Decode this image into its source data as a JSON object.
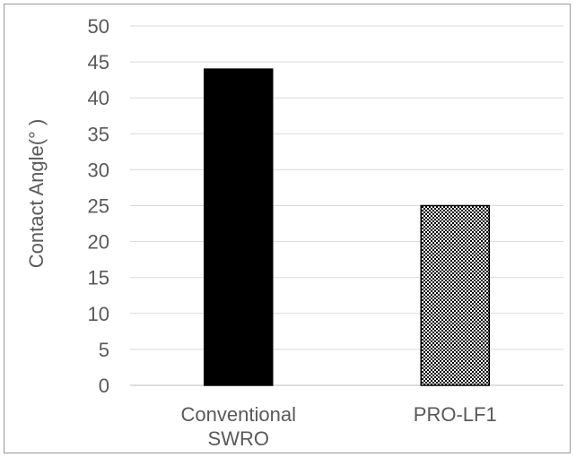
{
  "chart_data": {
    "type": "bar",
    "title": "",
    "xlabel": "",
    "ylabel": "Contact Angle(° )",
    "ylim": [
      0,
      50
    ],
    "yticks": [
      0,
      5,
      10,
      15,
      20,
      25,
      30,
      35,
      40,
      45,
      50
    ],
    "grid": true,
    "categories": [
      [
        "Conventional",
        "SWRO"
      ],
      [
        "PRO-LF1"
      ]
    ],
    "values": [
      44,
      25
    ],
    "bar_styles": [
      "solid",
      "checkered"
    ],
    "colors": {
      "bar_solid": "#000000",
      "grid": "#d9d9d9",
      "text": "#595959",
      "axis": "#bfbfbf"
    }
  }
}
